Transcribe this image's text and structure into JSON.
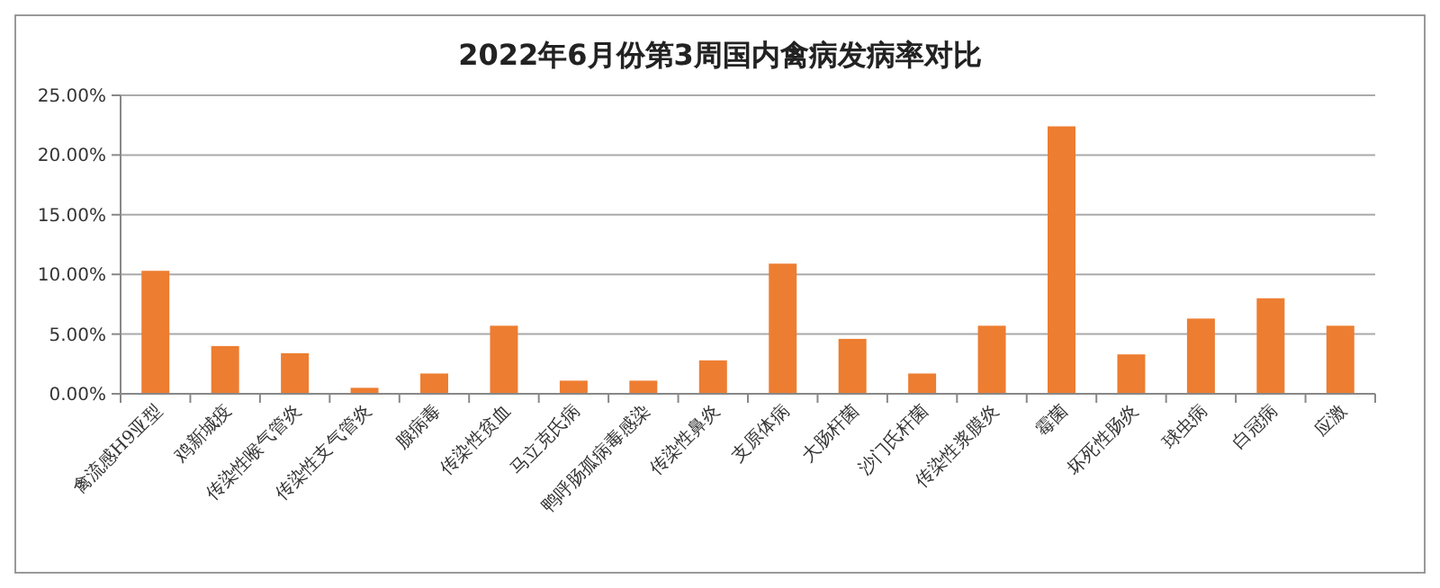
{
  "chart_data": {
    "type": "bar",
    "title": "2022年6月份第3周国内禽病发病率对比",
    "categories": [
      "禽流感H9亚型",
      "鸡新城疫",
      "传染性喉气管炎",
      "传染性支气管炎",
      "腺病毒",
      "传染性贫血",
      "马立克氏病",
      "鸭呼肠孤病毒感染",
      "传染性鼻炎",
      "支原体病",
      "大肠杆菌",
      "沙门氏杆菌",
      "传染性浆膜炎",
      "霉菌",
      "坏死性肠炎",
      "球虫病",
      "白冠病",
      "应激"
    ],
    "values": [
      10.3,
      4.0,
      3.4,
      0.5,
      1.7,
      5.7,
      1.1,
      1.1,
      2.8,
      10.9,
      4.6,
      1.7,
      5.7,
      22.4,
      3.3,
      6.3,
      8.0,
      5.7
    ],
    "color": "#ed7d31",
    "ylim": [
      0,
      25
    ],
    "yticks": [
      {
        "value": 0,
        "label": "0.00%"
      },
      {
        "value": 5,
        "label": "5.00%"
      },
      {
        "value": 10,
        "label": "10.00%"
      },
      {
        "value": 15,
        "label": "15.00%"
      },
      {
        "value": 20,
        "label": "20.00%"
      },
      {
        "value": 25,
        "label": "25.00%"
      }
    ],
    "grid": "y"
  }
}
